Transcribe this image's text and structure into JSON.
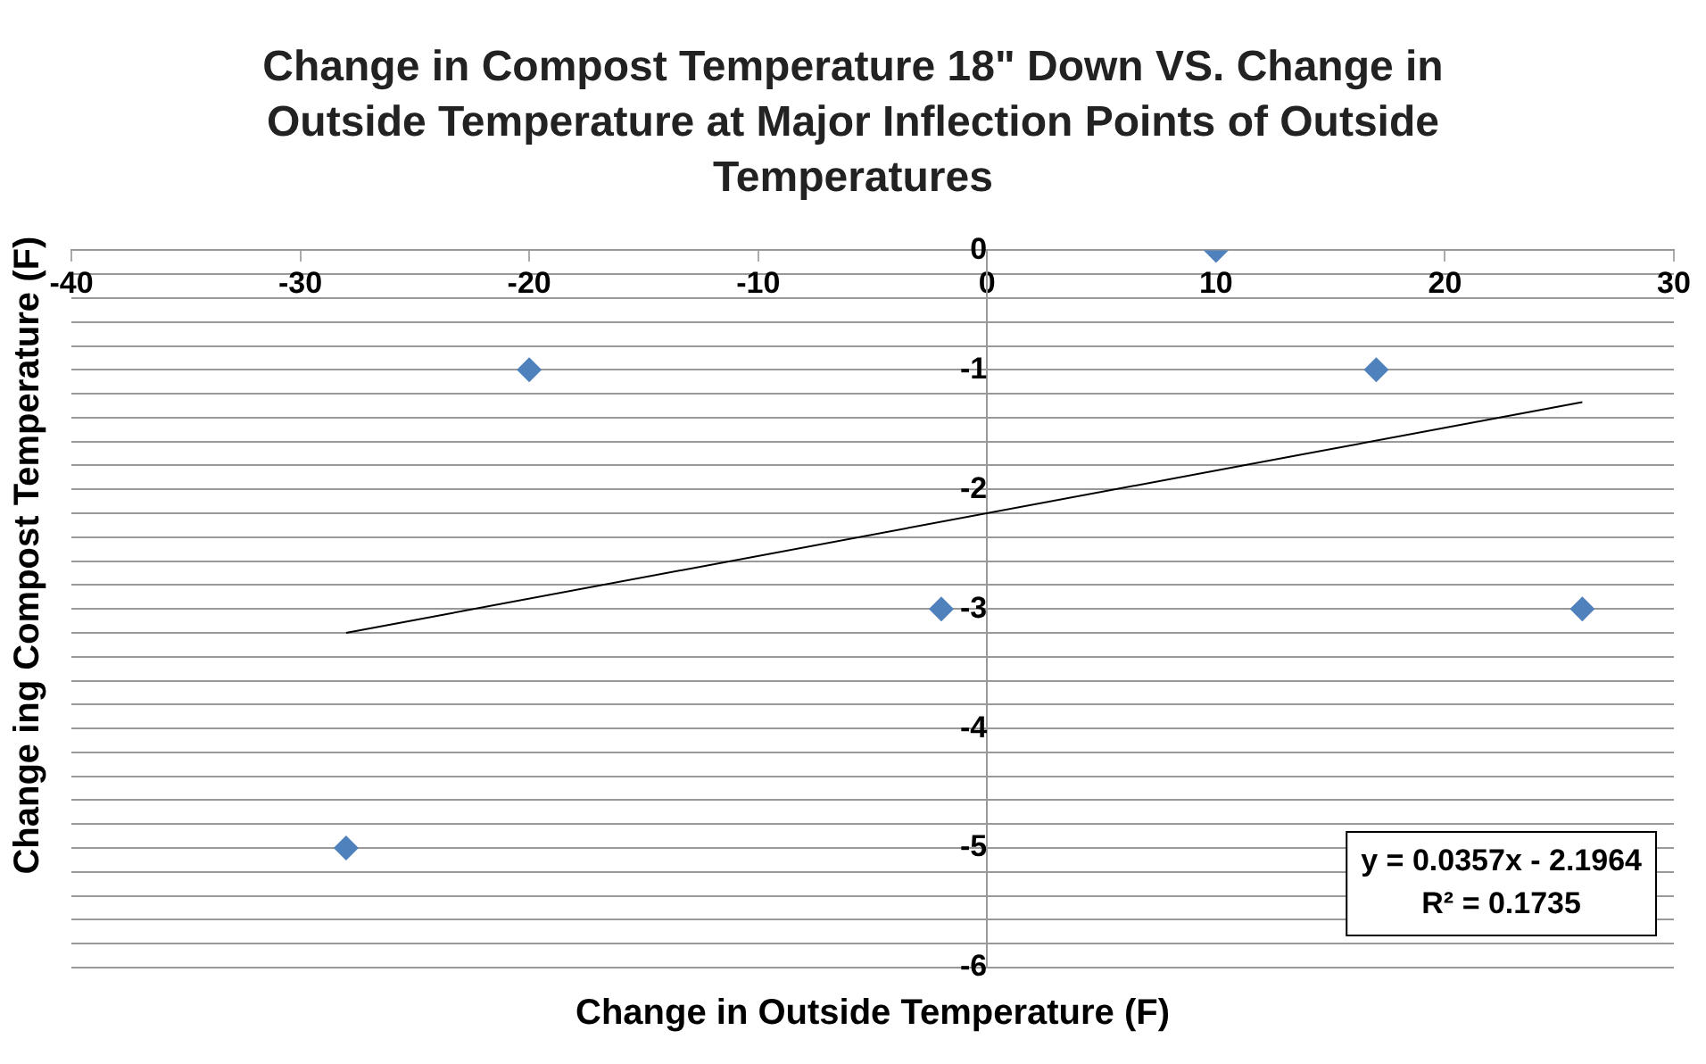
{
  "chart_data": {
    "type": "scatter",
    "title": "Change in Compost Temperature 18\" Down VS. Change in Outside Temperature  at Major Inflection Points of Outside Temperatures",
    "xlabel": "Change in Outside Temperature (F)",
    "ylabel": "Change ing Compost Temperature (F)",
    "x": [
      -28,
      -20,
      -2,
      10,
      17,
      26
    ],
    "series": [
      {
        "color": "#4f81bd",
        "marker": "diamond",
        "values": [
          -5,
          -1,
          -3,
          0,
          -1,
          -3
        ]
      },
      {
        "type": "line",
        "color": "#000000",
        "marker": "none",
        "x": [
          -28,
          26
        ],
        "values": [
          -3.2,
          -1.27
        ]
      }
    ],
    "xlim": [
      -40,
      30
    ],
    "xticks": [
      -40,
      -30,
      -20,
      -10,
      0,
      10,
      20,
      30
    ],
    "ylim": [
      -6,
      0
    ],
    "yticks": [
      -6,
      {
        "value": -5.8,
        "label": null
      },
      {
        "value": -5.6,
        "label": null
      },
      {
        "value": -5.4,
        "label": null
      },
      {
        "value": -5.2,
        "label": null
      },
      -5,
      {
        "value": -4.8,
        "label": null
      },
      {
        "value": -4.6,
        "label": null
      },
      {
        "value": -4.4,
        "label": null
      },
      {
        "value": -4.2,
        "label": null
      },
      -4,
      {
        "value": -3.8,
        "label": null
      },
      {
        "value": -3.6,
        "label": null
      },
      {
        "value": -3.4,
        "label": null
      },
      {
        "value": -3.2,
        "label": null
      },
      -3,
      {
        "value": -2.8,
        "label": null
      },
      {
        "value": -2.6,
        "label": null
      },
      {
        "value": -2.4,
        "label": null
      },
      {
        "value": -2.2,
        "label": null
      },
      -2,
      {
        "value": -1.8,
        "label": null
      },
      {
        "value": -1.6,
        "label": null
      },
      {
        "value": -1.4,
        "label": null
      },
      {
        "value": -1.2,
        "label": null
      },
      -1,
      {
        "value": -0.8,
        "label": null
      },
      {
        "value": -0.6,
        "label": null
      },
      {
        "value": -0.4,
        "label": null
      },
      {
        "value": -0.2,
        "label": null
      },
      0
    ],
    "grid": "y",
    "legend": false,
    "annotations": [
      "y = 0.0357x - 2.1964",
      "R² = 0.1735"
    ]
  }
}
